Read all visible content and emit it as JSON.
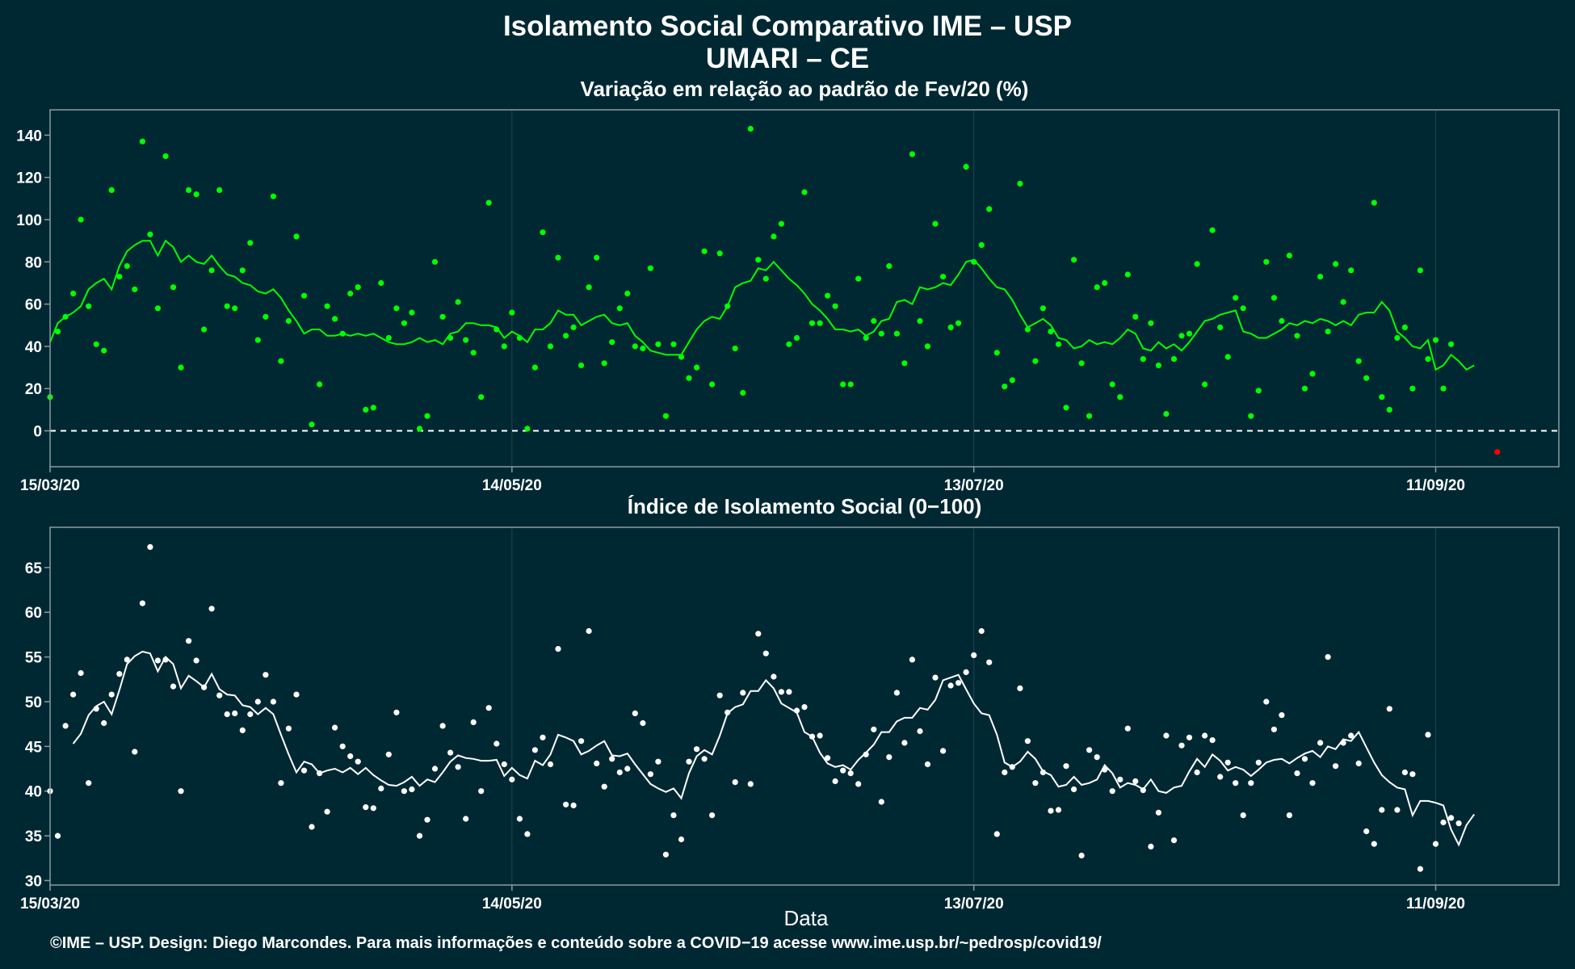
{
  "header": {
    "title_line1": "Isolamento Social Comparativo IME – USP",
    "title_line2": "UMARI – CE"
  },
  "footer": {
    "credit": "©IME – USP. Design: Diego Marcondes. Para mais informações e conteúdo sobre a COVID−19 acesse www.ime.usp.br/~pedrosp/covid19/"
  },
  "colors": {
    "background": "#002833",
    "panel_border": "#8a9aa0",
    "grid": "#1f4450",
    "variation_series": "#00ff00",
    "index_series": "#ffffff",
    "negative_point": "#ff0000",
    "zero_line": "#ffffff"
  },
  "chart_data": [
    {
      "type": "scatter",
      "title": "Variação em relação ao padrão de Fev/20 (%)",
      "xlabel": "",
      "ylabel": "",
      "x_start": "15/03/20",
      "x_end": "27/09/20",
      "xticks": [
        "15/03/20",
        "14/05/20",
        "13/07/20",
        "11/09/20"
      ],
      "yticks": [
        0,
        20,
        40,
        60,
        80,
        100,
        120,
        140
      ],
      "ylim": [
        -17,
        152
      ],
      "grid": true,
      "reference_line": {
        "y": 0,
        "style": "dashed"
      },
      "series": [
        {
          "points_daily_from": "15/03/20",
          "values": [
            16,
            47,
            54,
            65,
            100,
            59,
            41,
            38,
            114,
            73,
            78,
            67,
            137,
            93,
            58,
            130,
            68,
            30,
            114,
            112,
            48,
            76,
            114,
            59,
            58,
            76,
            89,
            43,
            54,
            111,
            33,
            52,
            92,
            64,
            3,
            22,
            59,
            53,
            46,
            65,
            68,
            10,
            11,
            70,
            44,
            58,
            51,
            56,
            1,
            7,
            80,
            54,
            44,
            61,
            43,
            37,
            16,
            108,
            48,
            40,
            56,
            44,
            1,
            30,
            94,
            40,
            82,
            45,
            49,
            31,
            68,
            82,
            32,
            42,
            58,
            65,
            40,
            39,
            77,
            41,
            7,
            41,
            35,
            25,
            30,
            85,
            22,
            84,
            59,
            39,
            18,
            143,
            81,
            72,
            92,
            98,
            41,
            44,
            113,
            51,
            51,
            64,
            59,
            22,
            22,
            72,
            44,
            52,
            46,
            78,
            46,
            32,
            131,
            52,
            40,
            98,
            73,
            49,
            51,
            125,
            80,
            88,
            105,
            37,
            21,
            24,
            117,
            48,
            33,
            58,
            47,
            41,
            11,
            81,
            32,
            7,
            68,
            70,
            22,
            16,
            74,
            54,
            34,
            51,
            31,
            8,
            34,
            45,
            46,
            79,
            22,
            95,
            49,
            35,
            63,
            58,
            7,
            19,
            80,
            63,
            52,
            83,
            45,
            20,
            27,
            73,
            47,
            79,
            61,
            76,
            33,
            25,
            108,
            16,
            10,
            44,
            49,
            20,
            76,
            34,
            43,
            20,
            41
          ],
          "moving_average": [
            42,
            51,
            54,
            56,
            59,
            67,
            70,
            72,
            67,
            78,
            85,
            88,
            90,
            90,
            83,
            90,
            87,
            80,
            83,
            80,
            79,
            83,
            78,
            74,
            73,
            70,
            69,
            66,
            65,
            67,
            63,
            57,
            52,
            46,
            48,
            48,
            45,
            45,
            46,
            45,
            46,
            45,
            46,
            44,
            42,
            41,
            41,
            42,
            44,
            42,
            43,
            41,
            46,
            47,
            51,
            51,
            50,
            50,
            49,
            44,
            47,
            45,
            42,
            48,
            48,
            51,
            57,
            55,
            55,
            50,
            52,
            54,
            55,
            51,
            50,
            51,
            45,
            42,
            38,
            37,
            36,
            36,
            36,
            42,
            48,
            52,
            54,
            53,
            59,
            68,
            70,
            71,
            77,
            76,
            80,
            76,
            72,
            69,
            65,
            60,
            57,
            53,
            48,
            48,
            47,
            48,
            45,
            47,
            52,
            53,
            61,
            62,
            60,
            68,
            67,
            68,
            70,
            69,
            74,
            80,
            81,
            77,
            72,
            68,
            67,
            62,
            55,
            49,
            51,
            53,
            50,
            44,
            43,
            39,
            40,
            43,
            41,
            42,
            41,
            44,
            48,
            46,
            39,
            38,
            42,
            39,
            41,
            38,
            42,
            47,
            52,
            53,
            55,
            56,
            57,
            47,
            46,
            44,
            44,
            46,
            48,
            51,
            50,
            52,
            51,
            53,
            52,
            50,
            52,
            50,
            55,
            56,
            56,
            61,
            57,
            47,
            44,
            40,
            39,
            43,
            29,
            31,
            36,
            33,
            29,
            31
          ]
        },
        {
          "name": "",
          "negative_points": [
            {
              "date": "19/09/20",
              "value": -10
            }
          ]
        }
      ]
    },
    {
      "type": "scatter",
      "title": "Índice de Isolamento Social (0−100)",
      "xlabel": "Data",
      "ylabel": "",
      "x_start": "15/03/20",
      "x_end": "27/09/20",
      "xticks": [
        "15/03/20",
        "14/05/20",
        "13/07/20",
        "11/09/20"
      ],
      "yticks": [
        30,
        35,
        40,
        45,
        50,
        55,
        60,
        65
      ],
      "ylim": [
        29.5,
        69.5
      ],
      "grid": true,
      "series": [
        {
          "points_daily_from": "15/03/20",
          "values": [
            40,
            35,
            47.3,
            50.8,
            53.2,
            40.9,
            49.2,
            47.6,
            50.8,
            53.1,
            54.7,
            44.4,
            61,
            67.3,
            54.6,
            54.7,
            51.7,
            40,
            56.8,
            54.6,
            51.6,
            60.4,
            50.7,
            48.6,
            48.7,
            46.8,
            48.6,
            50,
            53,
            50,
            40.9,
            47,
            50.8,
            42.3,
            36,
            42,
            37.7,
            47.1,
            45,
            43.9,
            43.3,
            38.2,
            38.1,
            40.3,
            44.1,
            48.8,
            40,
            40.2,
            35,
            36.8,
            42.5,
            47.3,
            44.3,
            42.7,
            36.9,
            47.7,
            40,
            49.3,
            45.3,
            43,
            41.3,
            36.9,
            35.2,
            44.6,
            46,
            43,
            55.9,
            38.5,
            38.4,
            45.6,
            57.9,
            43.1,
            40.5,
            43.6,
            42.1,
            42.5,
            48.7,
            47.6,
            41.9,
            43.3,
            32.9,
            37.3,
            34.6,
            43.3,
            44.7,
            43.6,
            37.3,
            50.7,
            48.8,
            41,
            51,
            40.8,
            57.6,
            55.4,
            52.8,
            51.1,
            51.1,
            49,
            49.4,
            46.1,
            46.2,
            43.7,
            41.1,
            42.3,
            42,
            40.8,
            44.1,
            46.9,
            38.8,
            43.8,
            51,
            45.4,
            54.7,
            46.7,
            43,
            52.7,
            44.5,
            51.8,
            52.1,
            53.3,
            55.2,
            57.9,
            54.4,
            35.2,
            42.1,
            42.7,
            51.5,
            45.6,
            40.9,
            42.1,
            37.8,
            37.9,
            42.8,
            40.2,
            32.8,
            44.6,
            43.8,
            42.4,
            40,
            41.3,
            47,
            41.1,
            40.1,
            33.8,
            37.6,
            46.2,
            34.5,
            45.1,
            46,
            42.1,
            46.2,
            45.7,
            41.6,
            43.2,
            40.9,
            37.3,
            40.9,
            43.2,
            50,
            46.9,
            48.5,
            37.3,
            42,
            43.6,
            40.9,
            45.4,
            55,
            42.8,
            45.4,
            46.2,
            43.1,
            35.5,
            34.1,
            37.9,
            49.2,
            37.9,
            42.1,
            41.9,
            31.3,
            46.3,
            34.1,
            36.5,
            37,
            36.4
          ],
          "moving_average": [
            null,
            null,
            null,
            45.3,
            46.4,
            48.5,
            49.5,
            50,
            48.6,
            51.3,
            54.2,
            55.1,
            55.6,
            55.4,
            53.4,
            55,
            54.2,
            51.5,
            52.9,
            52.3,
            51.6,
            53.1,
            51.4,
            50.8,
            50.7,
            49.6,
            49.4,
            48.6,
            49.3,
            48.6,
            46.3,
            44.1,
            42.1,
            43.3,
            43,
            42,
            42.3,
            42.5,
            42.1,
            42.6,
            41.9,
            42.6,
            41.8,
            41.2,
            40.7,
            40.6,
            41,
            41.6,
            40.6,
            41.3,
            41,
            42.1,
            43.3,
            44,
            43.7,
            43.6,
            43.4,
            43.4,
            43.5,
            41.7,
            42.6,
            41.8,
            41.4,
            43.4,
            42.9,
            44.1,
            46.3,
            46,
            45.6,
            44.1,
            44.5,
            45.1,
            45.6,
            44,
            43.9,
            44.2,
            43,
            41.9,
            40.8,
            40.3,
            39.9,
            40.3,
            39.2,
            42,
            43.9,
            44.6,
            44.1,
            46.2,
            48.7,
            49.4,
            49.7,
            51.2,
            51.2,
            52.4,
            51.5,
            49.8,
            49.3,
            48.8,
            46.6,
            46.1,
            44.3,
            43.1,
            42.7,
            42.9,
            42.4,
            43.5,
            44.3,
            45.2,
            46.6,
            46.6,
            47.8,
            48.2,
            48.2,
            49.3,
            49.1,
            50.2,
            52.4,
            52.7,
            53,
            51.4,
            49.8,
            48.7,
            48.5,
            46.3,
            43.2,
            42.7,
            43.3,
            44.4,
            43.6,
            42.2,
            41.8,
            40.5,
            40.7,
            41.6,
            40.7,
            40.9,
            41.3,
            42.9,
            42,
            40.4,
            40.9,
            40.7,
            40.2,
            41.3,
            40,
            39.8,
            40.4,
            40.6,
            42.2,
            43.6,
            42.7,
            44.1,
            43.4,
            42.3,
            42.7,
            42.4,
            41.7,
            42.4,
            43.2,
            43.5,
            43.6,
            43.1,
            43.7,
            44.2,
            44.5,
            43.8,
            45,
            44.7,
            45.8,
            45.6,
            46.6,
            44.9,
            43.2,
            41.8,
            41,
            40.4,
            40.2,
            37.3,
            38.9,
            38.9,
            38.7,
            38.4,
            35.7,
            34,
            36.2,
            37.4
          ]
        }
      ]
    }
  ]
}
